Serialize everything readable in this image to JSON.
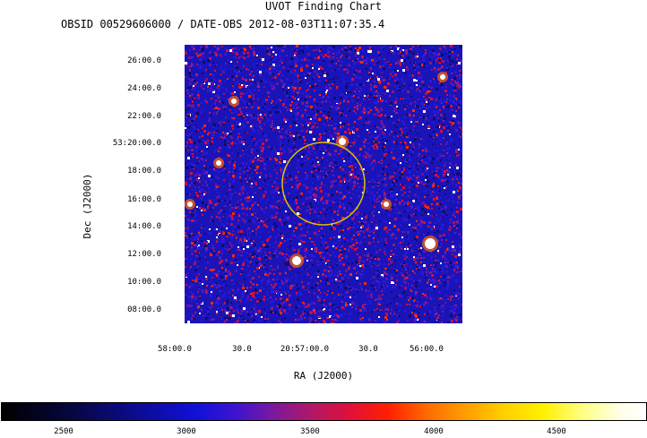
{
  "header": {
    "title": "UVOT Finding Chart",
    "subtitle": "OBSID 00529606000 / DATE-OBS 2012-08-03T11:07:35.4"
  },
  "axes": {
    "ylabel": "Dec (J2000)",
    "xlabel": "RA (J2000)",
    "y_ticks": [
      "26:00.0",
      "24:00.0",
      "22:00.0",
      "53:20:00.0",
      "18:00.0",
      "16:00.0",
      "14:00.0",
      "12:00.0",
      "10:00.0",
      "08:00.0"
    ],
    "x_ticks": [
      "58:00.0",
      "30.0",
      "20:57:00.0",
      "30.0",
      "56:00.0"
    ]
  },
  "colorbar": {
    "ticks": [
      "2500",
      "3000",
      "3500",
      "4000",
      "4500"
    ]
  },
  "colors": {
    "background_field": "#1a14b8",
    "circle": "#e0c200"
  }
}
